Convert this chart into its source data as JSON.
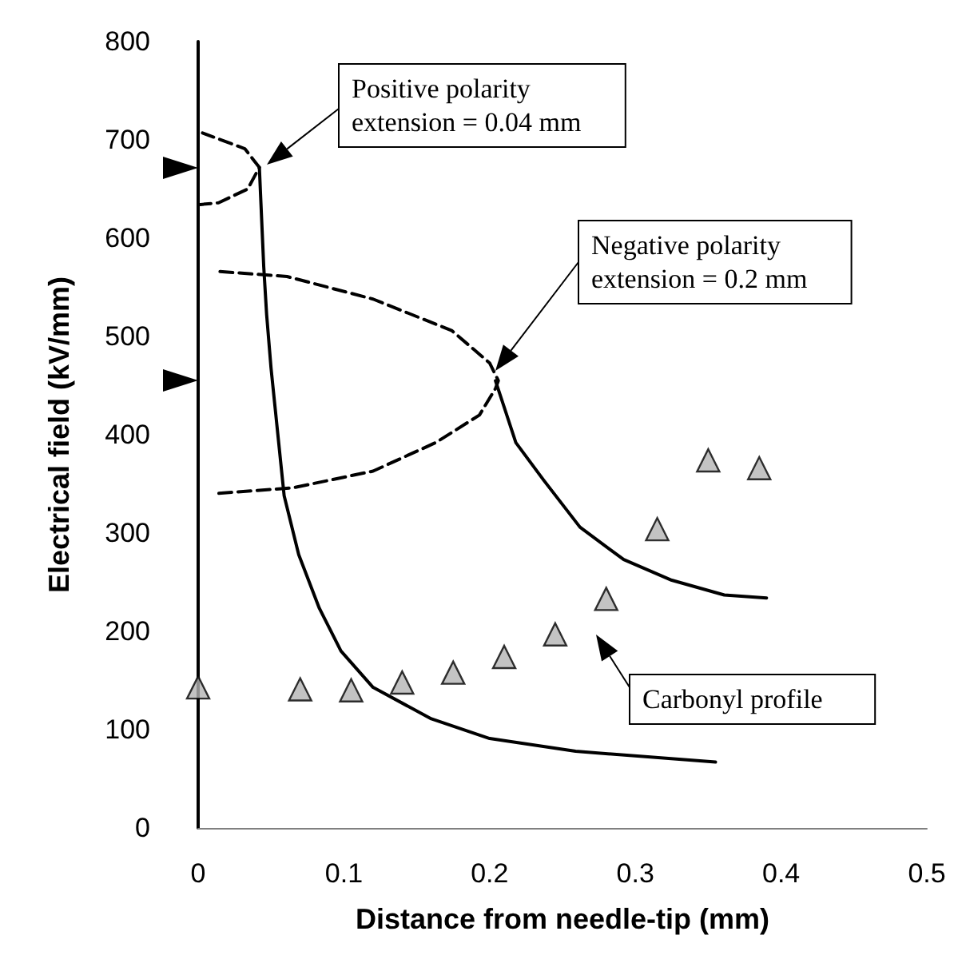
{
  "chart_data": {
    "type": "line",
    "xlabel": "Distance from needle-tip (mm)",
    "ylabel": "Electrical field (kV/mm)",
    "xlim": [
      0,
      0.5
    ],
    "xticks": [
      0,
      0.1,
      0.2,
      0.3,
      0.4,
      0.5
    ],
    "ylim": [
      0,
      800
    ],
    "yticks": [
      0,
      100,
      200,
      300,
      400,
      500,
      600,
      700,
      800
    ],
    "grid": false,
    "series": [
      {
        "line_style": "dashed",
        "color": "#000000",
        "marker": "none",
        "x": [
          0,
          0.014,
          0.034,
          0.042,
          0.032,
          0.003
        ],
        "values": [
          634,
          636,
          650,
          672,
          691,
          707
        ]
      },
      {
        "line_style": "solid",
        "color": "#000000",
        "marker": "none",
        "x": [
          0.042,
          0.045,
          0.047,
          0.05,
          0.059,
          0.069,
          0.083,
          0.098,
          0.12,
          0.16,
          0.2,
          0.259,
          0.355
        ],
        "values": [
          672,
          571,
          522,
          468,
          338,
          278,
          224,
          180,
          143,
          111,
          91,
          78,
          67
        ]
      },
      {
        "line_style": "dashed",
        "color": "#000000",
        "marker": "none",
        "x": [
          0.015,
          0.061,
          0.12,
          0.174,
          0.2,
          0.206,
          0.204,
          0.193,
          0.163,
          0.12,
          0.065,
          0.01
        ],
        "values": [
          566,
          561,
          538,
          506,
          473,
          455,
          447,
          420,
          392,
          363,
          346,
          340
        ]
      },
      {
        "line_style": "solid",
        "color": "#000000",
        "marker": "none",
        "x": [
          0.204,
          0.218,
          0.237,
          0.262,
          0.292,
          0.325,
          0.361,
          0.39
        ],
        "values": [
          455,
          392,
          354,
          306,
          273,
          252,
          237,
          234
        ]
      },
      {
        "type": "scatter",
        "marker": "triangle",
        "color": "#b4b4b4",
        "x": [
          0,
          0.07,
          0.105,
          0.14,
          0.175,
          0.21,
          0.245,
          0.28,
          0.315,
          0.35,
          0.385
        ],
        "values": [
          143,
          141,
          140,
          148,
          158,
          174,
          197,
          233,
          304,
          374,
          366
        ]
      }
    ],
    "annotations": [
      "Positive polarity\nextension = 0.04 mm",
      "Negative polarity\nextension = 0.2 mm",
      "Carbonyl profile"
    ]
  }
}
